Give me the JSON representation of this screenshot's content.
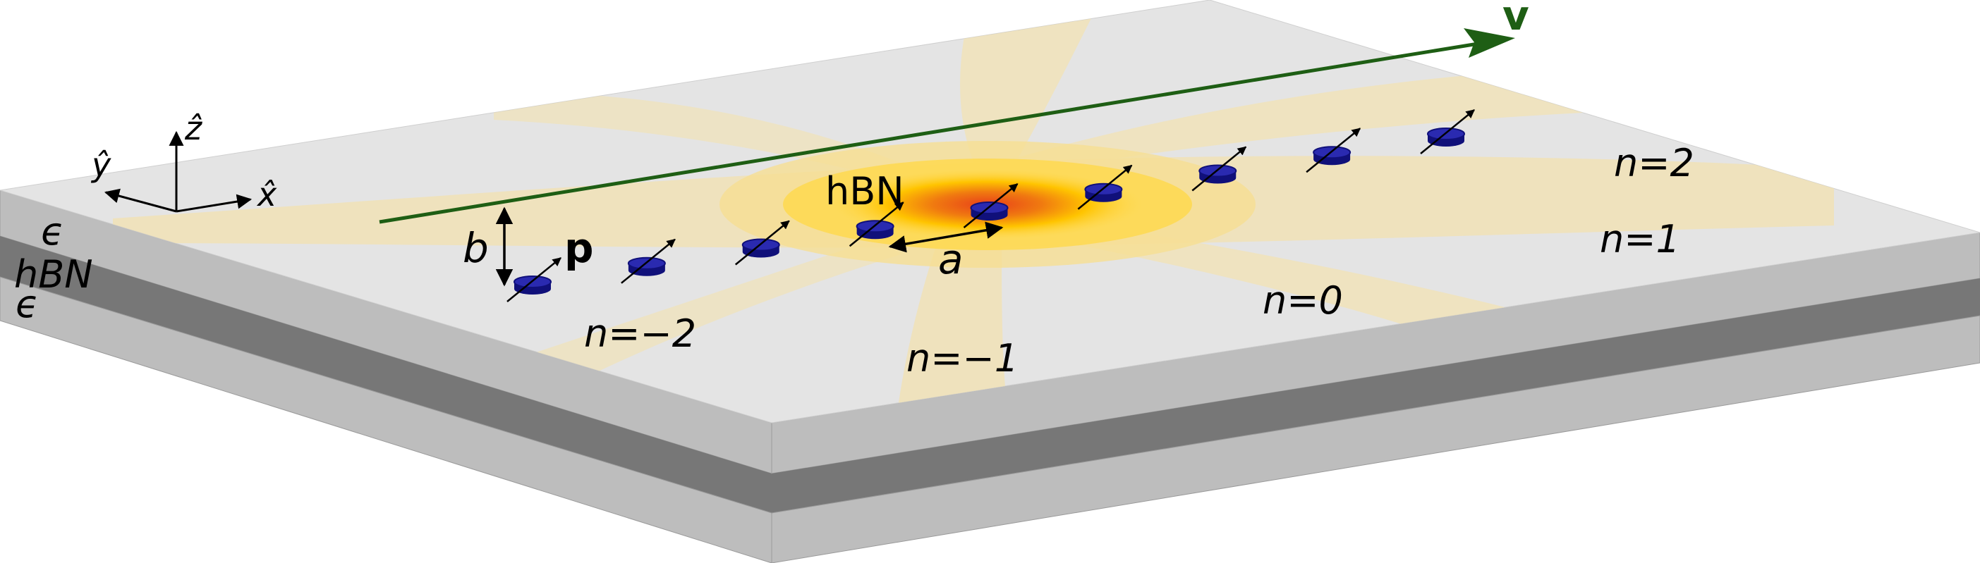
{
  "layers": [
    {
      "label": "ϵ",
      "color": "#bdbdbd"
    },
    {
      "label": "hBN",
      "color": "#777777"
    },
    {
      "label": "ϵ",
      "color": "#bdbdbd"
    }
  ],
  "surface_color": "#e4e4e4",
  "axes": {
    "x": "x̂",
    "y": "ŷ",
    "z": "ẑ"
  },
  "labels": {
    "velocity": "v",
    "dipole": "p",
    "distance": "b",
    "spacing": "a",
    "material": "hBN"
  },
  "orders": [
    "n=−2",
    "n=−1",
    "n=0",
    "n=1",
    "n=2"
  ],
  "dipole_count": 9,
  "colors": {
    "velocity_arrow": "#1e5e14",
    "particle": "#10107a",
    "field_hot": "#e8401a",
    "field_mid": "#ffc400",
    "field_pale": "#f3e2b0"
  }
}
